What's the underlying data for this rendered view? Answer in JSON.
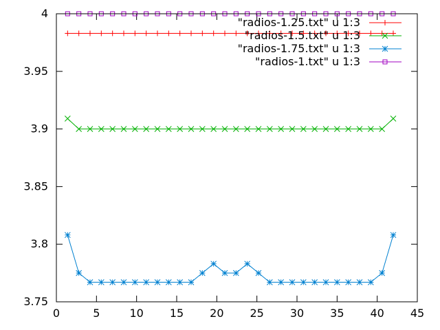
{
  "chart_data": {
    "type": "line",
    "title": "",
    "xlabel": "",
    "ylabel": "",
    "xlim": [
      0,
      45
    ],
    "ylim": [
      3.75,
      4
    ],
    "xticks": [
      0,
      5,
      10,
      15,
      20,
      25,
      30,
      35,
      40,
      45
    ],
    "yticks": [
      3.75,
      3.8,
      3.85,
      3.9,
      3.95,
      4
    ],
    "xtick_labels": [
      "0",
      "5",
      "10",
      "15",
      "20",
      "25",
      "30",
      "35",
      "40",
      "45"
    ],
    "ytick_labels": [
      "3.75",
      "3.8",
      "3.85",
      "3.9",
      "3.95",
      "4"
    ],
    "grid": false,
    "legend_position": "top-right",
    "x": [
      1.4,
      2.8,
      4.2,
      5.6,
      7.0,
      8.4,
      9.8,
      11.2,
      12.6,
      14.0,
      15.4,
      16.8,
      18.2,
      19.6,
      21.0,
      22.4,
      23.8,
      25.2,
      26.6,
      28.0,
      29.4,
      30.8,
      32.2,
      33.6,
      35.0,
      36.4,
      37.8,
      39.2,
      40.6,
      42.0
    ],
    "series": [
      {
        "name": "\"radios-1.25.txt\" u 1:3",
        "color": "#ff0000",
        "marker": "plus",
        "values": [
          3.983,
          3.983,
          3.983,
          3.983,
          3.983,
          3.983,
          3.983,
          3.983,
          3.983,
          3.983,
          3.983,
          3.983,
          3.983,
          3.983,
          3.983,
          3.983,
          3.983,
          3.983,
          3.983,
          3.983,
          3.983,
          3.983,
          3.983,
          3.983,
          3.983,
          3.983,
          3.983,
          3.983,
          3.983,
          3.983
        ]
      },
      {
        "name": "\"radios-1.5.txt\" u 1:3",
        "color": "#00b000",
        "marker": "cross",
        "values": [
          3.909,
          3.9,
          3.9,
          3.9,
          3.9,
          3.9,
          3.9,
          3.9,
          3.9,
          3.9,
          3.9,
          3.9,
          3.9,
          3.9,
          3.9,
          3.9,
          3.9,
          3.9,
          3.9,
          3.9,
          3.9,
          3.9,
          3.9,
          3.9,
          3.9,
          3.9,
          3.9,
          3.9,
          3.9,
          3.909
        ]
      },
      {
        "name": "\"radios-1.75.txt\" u 1:3",
        "color": "#0080d0",
        "marker": "star",
        "values": [
          3.808,
          3.775,
          3.767,
          3.767,
          3.767,
          3.767,
          3.767,
          3.767,
          3.767,
          3.767,
          3.767,
          3.767,
          3.775,
          3.783,
          3.775,
          3.775,
          3.783,
          3.775,
          3.767,
          3.767,
          3.767,
          3.767,
          3.767,
          3.767,
          3.767,
          3.767,
          3.767,
          3.767,
          3.775,
          3.808
        ]
      },
      {
        "name": "\"radios-1.txt\" u 1:3",
        "color": "#a000c0",
        "marker": "square",
        "values": [
          4,
          4,
          4,
          4,
          4,
          4,
          4,
          4,
          4,
          4,
          4,
          4,
          4,
          4,
          4,
          4,
          4,
          4,
          4,
          4,
          4,
          4,
          4,
          4,
          4,
          4,
          4,
          4,
          4,
          4
        ]
      }
    ]
  }
}
